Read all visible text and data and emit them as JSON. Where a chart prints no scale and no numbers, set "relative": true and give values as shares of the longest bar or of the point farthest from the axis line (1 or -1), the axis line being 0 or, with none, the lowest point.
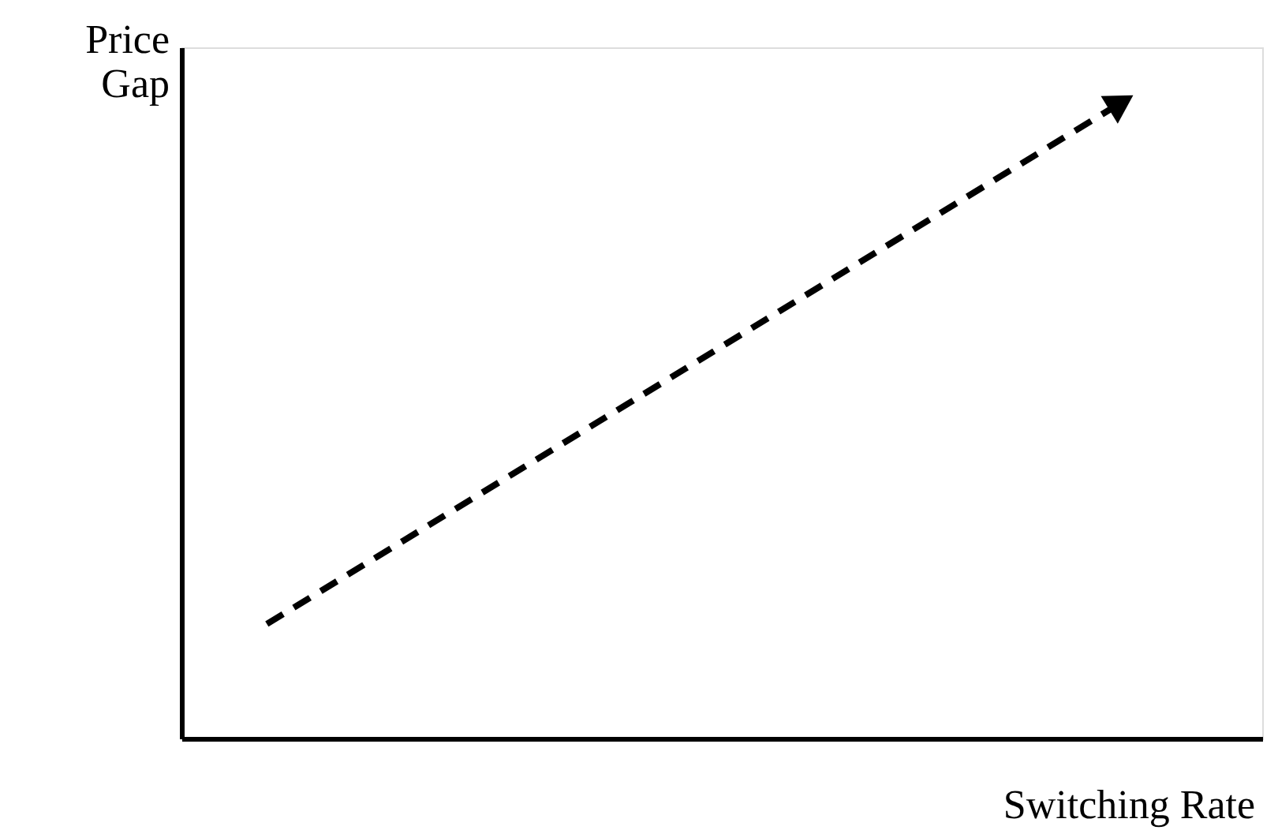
{
  "chart_data": {
    "type": "line",
    "relative": true,
    "xlabel": "Switching Rate",
    "ylabel": "Price Gap",
    "categories": [
      null,
      null
    ],
    "series": [
      {
        "color": "#000000",
        "values": [
          0.18,
          1
        ]
      }
    ],
    "line_style": "dashed",
    "grid": false,
    "tick_labels": false
  }
}
